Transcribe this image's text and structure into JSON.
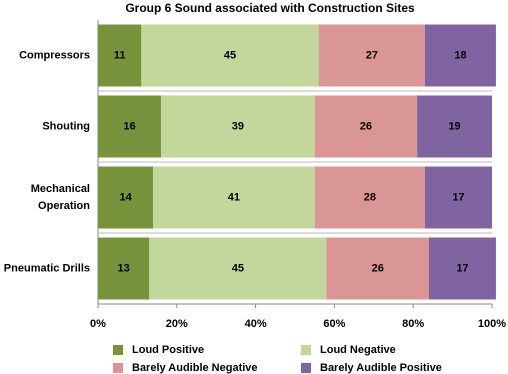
{
  "chart_data": {
    "type": "stacked-barh",
    "title": "Group 6   Sound associated with Construction Sites",
    "categories": [
      "Compressors",
      "Shouting",
      "Mechanical\nOperation",
      "Pneumatic Drills"
    ],
    "series": [
      {
        "name": "Loud Positive",
        "color": "#77933c",
        "values": [
          11,
          16,
          14,
          13
        ]
      },
      {
        "name": "Loud Negative",
        "color": "#c3d69b",
        "values": [
          45,
          39,
          41,
          45
        ]
      },
      {
        "name": "Barely Audible Negative",
        "color": "#d99694",
        "values": [
          27,
          26,
          28,
          26
        ]
      },
      {
        "name": "Barely Audible Positive",
        "color": "#8064a2",
        "values": [
          18,
          19,
          17,
          17
        ]
      }
    ],
    "xlim": [
      0,
      100
    ],
    "xticks": [
      {
        "value": 0,
        "label": "0%"
      },
      {
        "value": 20,
        "label": "20%"
      },
      {
        "value": 40,
        "label": "40%"
      },
      {
        "value": 60,
        "label": "60%"
      },
      {
        "value": 80,
        "label": "80%"
      },
      {
        "value": 100,
        "label": "100%"
      }
    ]
  }
}
